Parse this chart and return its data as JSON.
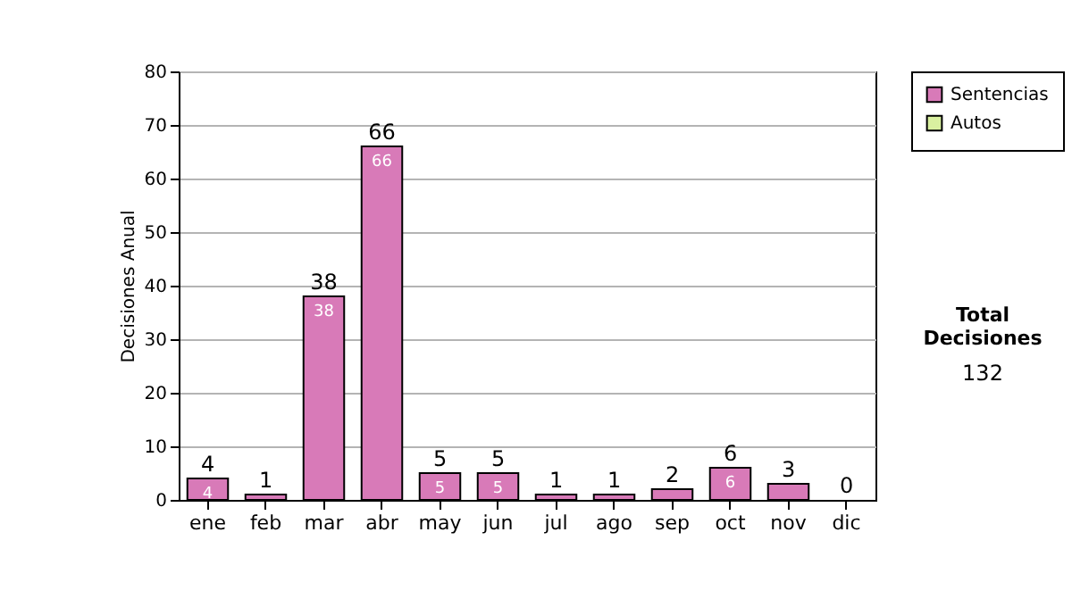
{
  "chart_data": {
    "type": "bar",
    "stacked": true,
    "ylabel": "Decisiones Anual",
    "categories": [
      "ene",
      "feb",
      "mar",
      "abr",
      "may",
      "jun",
      "jul",
      "ago",
      "sep",
      "oct",
      "nov",
      "dic"
    ],
    "series": [
      {
        "name": "Sentencias",
        "color": "#d87ab8",
        "values": [
          4,
          1,
          38,
          66,
          5,
          5,
          1,
          1,
          2,
          6,
          3,
          0
        ],
        "value_labels": [
          "4",
          null,
          "38",
          "66",
          "5",
          "5",
          null,
          null,
          null,
          "6",
          null,
          null
        ]
      },
      {
        "name": "Autos",
        "color": "#d9f0a0",
        "values": [
          0,
          0,
          0,
          0,
          0,
          0,
          0,
          0,
          0,
          0,
          0,
          0
        ]
      }
    ],
    "totals": [
      "4",
      "1",
      "38",
      "66",
      "5",
      "5",
      "1",
      "1",
      "2",
      "6",
      "3",
      "0"
    ],
    "ylim": [
      0,
      80
    ],
    "yticks": [
      0,
      10,
      20,
      30,
      40,
      50,
      60,
      70,
      80
    ],
    "grid": true,
    "legend": "right",
    "annotations": [
      "Total Decisiones",
      "132"
    ]
  }
}
